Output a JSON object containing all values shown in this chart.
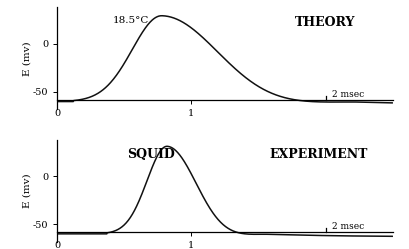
{
  "top_label_left": "18.5°C",
  "top_label_right": "THEORY",
  "bot_label_left": "SQUID",
  "bot_label_right": "EXPERIMENT",
  "ylabel": "E (mv)",
  "line_color": "#111111",
  "ylim": [
    -68,
    38
  ],
  "xlim": [
    0,
    2.5
  ],
  "resting": -60,
  "theory_peak_x": 0.78,
  "theory_peak_y": 30,
  "theory_rise_sigma": 0.22,
  "theory_fall_sigma": 0.42,
  "theory_undershoot_x": 1.5,
  "theory_undershoot_amp": -5,
  "theory_undershoot_sigma": 0.35,
  "exp_peak_x": 0.82,
  "exp_peak_y": 32,
  "exp_rise_sigma": 0.15,
  "exp_fall_sigma": 0.22,
  "exp_undershoot_x": 1.18,
  "exp_undershoot_amp": -6,
  "exp_undershoot_sigma": 0.18
}
